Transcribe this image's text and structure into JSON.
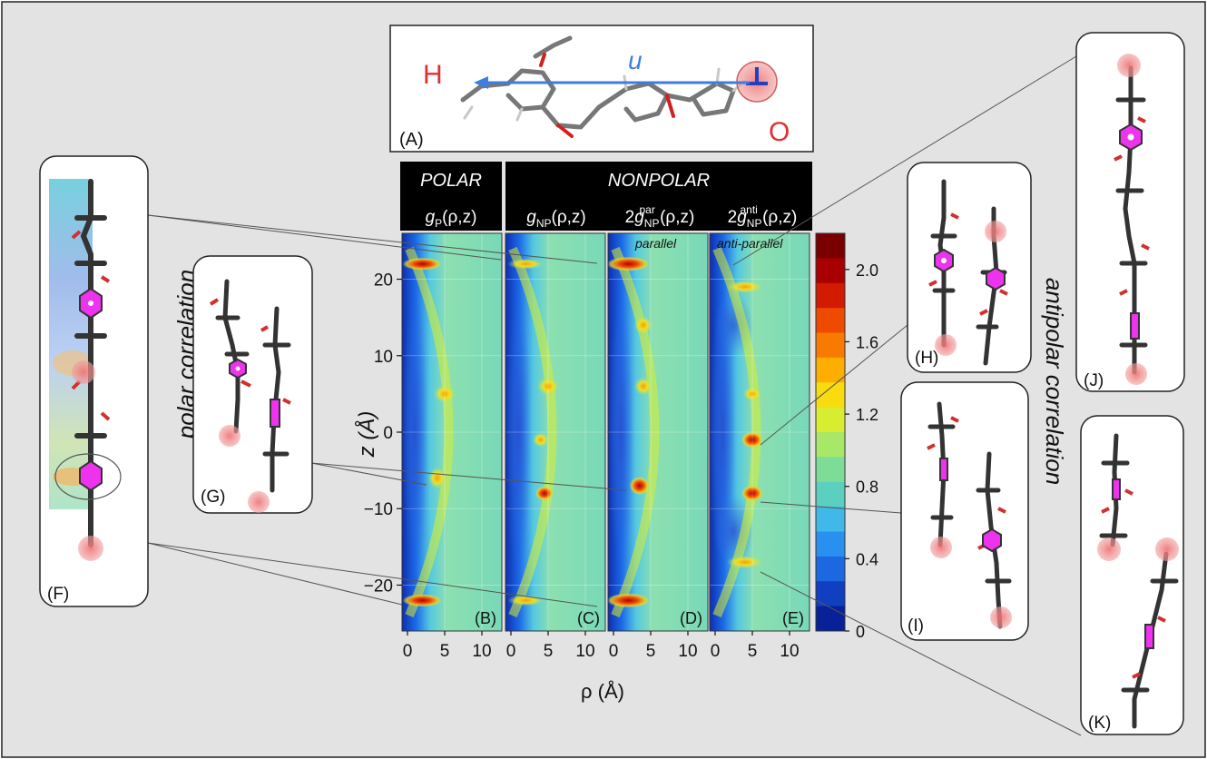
{
  "panel_a": {
    "label": "(A)",
    "end_h": "H",
    "end_o": "O",
    "vector": "u"
  },
  "headers": {
    "polar": "POLAR",
    "nonpolar": "NONPOLAR",
    "formulas": [
      {
        "prefix": "",
        "g": "g",
        "sub": "P",
        "sup": "",
        "tail": "(ρ,z)"
      },
      {
        "prefix": "",
        "g": "g",
        "sub": "NP",
        "sup": "",
        "tail": "(ρ,z)"
      },
      {
        "prefix": "2",
        "g": "g",
        "sub": "NP",
        "sup": "par",
        "tail": " (ρ,z)"
      },
      {
        "prefix": "2",
        "g": "g",
        "sub": "NP",
        "sup": "anti",
        "tail": " (ρ,z)"
      }
    ]
  },
  "panels": {
    "labels": [
      "(B)",
      "(C)",
      "(D)",
      "(E)"
    ],
    "annotation_parallel": "parallel",
    "annotation_antiparallel": "anti-parallel"
  },
  "axes": {
    "y_label": "z (Å)",
    "x_label": "ρ (Å)",
    "y_ticks": [
      "20",
      "10",
      "0",
      "−10",
      "−20"
    ],
    "x_ticks": [
      "0",
      "5",
      "10"
    ]
  },
  "colorbar": {
    "ticks": [
      "2.0",
      "1.6",
      "1.2",
      "0.8",
      "0.4",
      "0"
    ],
    "colors": [
      "#7a0000",
      "#a80000",
      "#d21b00",
      "#ee4a00",
      "#f87a00",
      "#fdae00",
      "#f8dc10",
      "#d8ec30",
      "#a8e868",
      "#7cdc98",
      "#5cd0c0",
      "#40b8e8",
      "#2a90f0",
      "#1c68e0",
      "#1040c0",
      "#082098"
    ]
  },
  "side_labels": {
    "polar": "polar correlation",
    "antipolar": "antipolar correlation"
  },
  "insets": {
    "f": "(F)",
    "g": "(G)",
    "h": "(H)",
    "i": "(I)",
    "j": "(J)",
    "k": "(K)"
  },
  "colors": {
    "background": "#e3e3e3",
    "atom_o": "#e03030",
    "ring_highlight": "#ee33ee",
    "arrow": "#3b7de0"
  }
}
